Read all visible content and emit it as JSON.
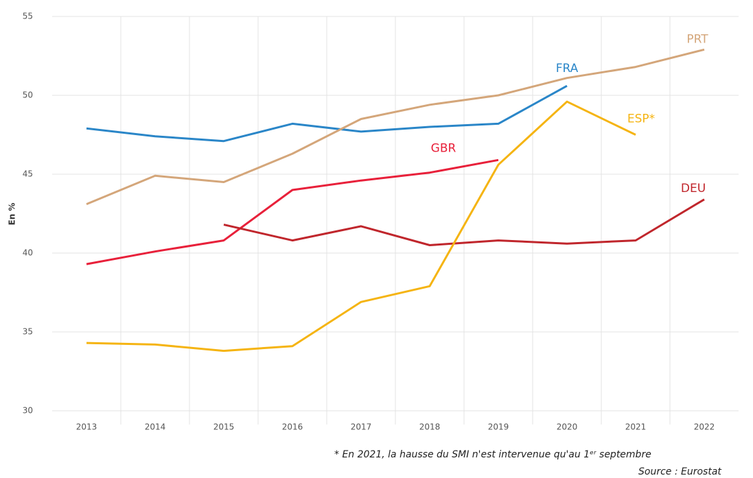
{
  "chart_data": {
    "type": "line",
    "y_label": "En %",
    "categories": [
      "2013",
      "2014",
      "2015",
      "2016",
      "2017",
      "2018",
      "2019",
      "2020",
      "2021",
      "2022"
    ],
    "series": [
      {
        "name": "FRA",
        "color": "#2a86c8",
        "values": [
          47.9,
          47.4,
          47.1,
          48.2,
          47.7,
          48.0,
          48.2,
          50.6,
          null,
          null
        ]
      },
      {
        "name": "PRT",
        "color": "#d4a67a",
        "values": [
          43.1,
          44.9,
          44.5,
          46.3,
          48.5,
          49.4,
          50.0,
          51.1,
          51.8,
          52.9
        ]
      },
      {
        "name": "GBR",
        "color": "#e8203a",
        "values": [
          39.3,
          40.1,
          40.8,
          44.0,
          44.6,
          45.1,
          45.9,
          null,
          null,
          null
        ]
      },
      {
        "name": "DEU",
        "color": "#c0262c",
        "values": [
          null,
          null,
          41.8,
          40.8,
          41.7,
          40.5,
          40.8,
          40.6,
          40.8,
          43.4
        ]
      },
      {
        "name": "ESP*",
        "color": "#f5b412",
        "values": [
          34.3,
          34.2,
          33.8,
          34.1,
          36.9,
          37.9,
          45.6,
          49.6,
          47.5,
          null
        ]
      }
    ],
    "ylim": [
      30,
      55
    ],
    "yticks": [
      30,
      35,
      40,
      45,
      50,
      55
    ],
    "grid": true,
    "footnote": "* En 2021, la hausse du SMI n'est intervenue qu'au 1ᵉʳ septembre",
    "source": "Source : Eurostat"
  }
}
